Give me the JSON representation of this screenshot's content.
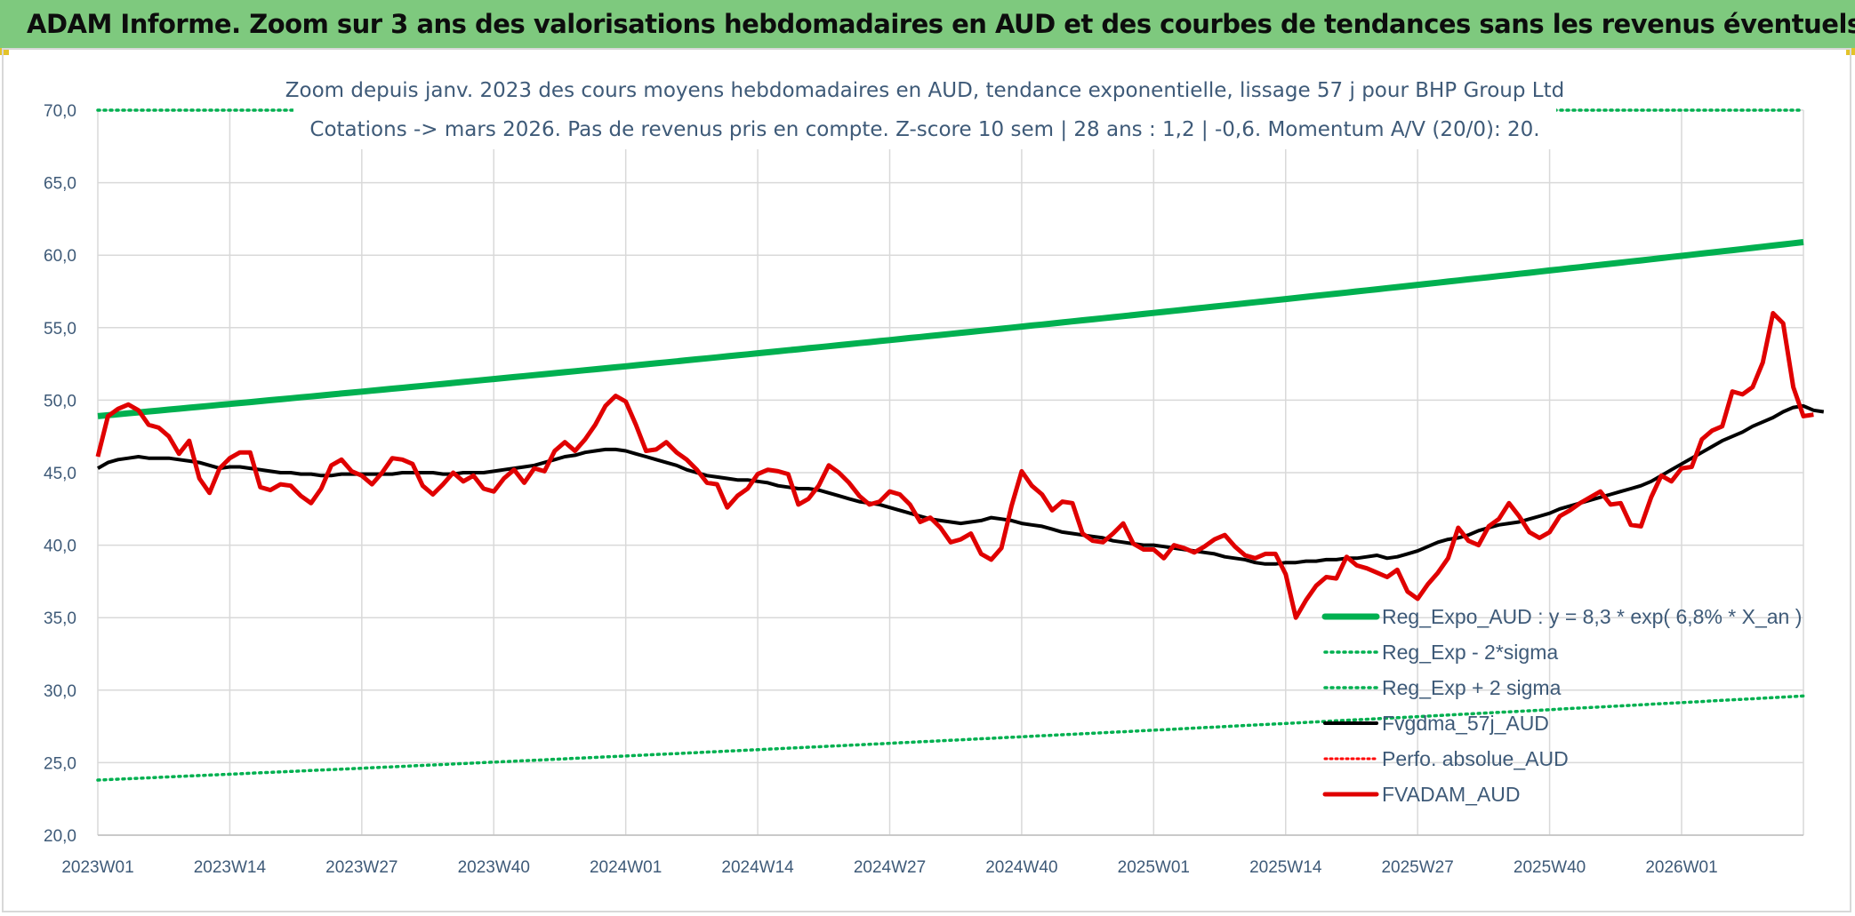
{
  "header": {
    "title": "ADAM Informe. Zoom sur 3 ans des valorisations hebdomadaires en AUD et des courbes de tendances sans les revenus éventuels"
  },
  "chart_data": {
    "type": "line",
    "title": "",
    "subtitle_lines": [
      "Zoom depuis janv. 2023 des cours moyens hebdomadaires en AUD, tendance exponentielle, lissage 57 j pour BHP Group Ltd",
      "Cotations -> mars 2026. Pas de revenus pris en compte. Z-score 10 sem | 28 ans : 1,2 | -0,6. Momentum A/V (20/0): 20."
    ],
    "xlabel": "",
    "ylabel": "",
    "ylim": [
      20,
      70
    ],
    "y_ticks": [
      "70,0",
      "65,0",
      "60,0",
      "55,0",
      "50,0",
      "45,0",
      "40,0",
      "35,0",
      "30,0",
      "25,0",
      "20,0"
    ],
    "x_ticks": [
      "2023W01",
      "2023W14",
      "2023W27",
      "2023W40",
      "2024W01",
      "2024W14",
      "2024W27",
      "2024W40",
      "2025W01",
      "2025W14",
      "2025W27",
      "2025W40",
      "2026W01"
    ],
    "weeks_total": 169,
    "x_tick_step": 13,
    "grid": true,
    "legend_position": "bottom-right",
    "colors": {
      "reg_expo": "#00b050",
      "band": "#00b050",
      "fvgdma": "#000000",
      "perfo": "#ff0000",
      "fvadam": "#e00000",
      "grid": "#d9d9d9"
    },
    "series": [
      {
        "name": "Reg_Expo_AUD : y = 8,3 * exp( 6,8% *  X_an )",
        "style": "thick-solid",
        "start": 48.9,
        "end": 60.9
      },
      {
        "name": "Reg_Exp - 2*sigma",
        "style": "dotted",
        "start": 23.8,
        "end": 29.6
      },
      {
        "name": "Reg_Exp + 2 sigma",
        "style": "dotted",
        "start": 70.0,
        "end": 70.0
      },
      {
        "name": "Fvgdma_57j_AUD",
        "style": "medium-solid",
        "values": [
          45.3,
          45.7,
          45.9,
          46.0,
          46.1,
          46.0,
          46.0,
          46.0,
          45.9,
          45.8,
          45.7,
          45.5,
          45.3,
          45.4,
          45.4,
          45.3,
          45.2,
          45.1,
          45.0,
          45.0,
          44.9,
          44.9,
          44.8,
          44.8,
          44.9,
          44.9,
          44.9,
          44.9,
          44.9,
          44.9,
          45.0,
          45.0,
          45.0,
          45.0,
          44.9,
          44.9,
          45.0,
          45.0,
          45.0,
          45.1,
          45.2,
          45.3,
          45.4,
          45.5,
          45.7,
          45.9,
          46.1,
          46.2,
          46.4,
          46.5,
          46.6,
          46.6,
          46.5,
          46.3,
          46.1,
          45.9,
          45.7,
          45.5,
          45.2,
          45.0,
          44.8,
          44.7,
          44.6,
          44.5,
          44.5,
          44.4,
          44.3,
          44.1,
          44.0,
          43.9,
          43.9,
          43.8,
          43.6,
          43.4,
          43.2,
          43.0,
          42.9,
          42.8,
          42.6,
          42.4,
          42.2,
          42.0,
          41.8,
          41.7,
          41.6,
          41.5,
          41.6,
          41.7,
          41.9,
          41.8,
          41.7,
          41.5,
          41.4,
          41.3,
          41.1,
          40.9,
          40.8,
          40.7,
          40.6,
          40.5,
          40.3,
          40.2,
          40.1,
          40.0,
          40.0,
          39.9,
          39.8,
          39.7,
          39.6,
          39.5,
          39.4,
          39.2,
          39.1,
          39.0,
          38.8,
          38.7,
          38.7,
          38.8,
          38.8,
          38.9,
          38.9,
          39.0,
          39.0,
          39.1,
          39.1,
          39.2,
          39.3,
          39.1,
          39.2,
          39.4,
          39.6,
          39.9,
          40.2,
          40.4,
          40.5,
          40.7,
          41.0,
          41.2,
          41.4,
          41.5,
          41.6,
          41.8,
          42.0,
          42.2,
          42.5,
          42.7,
          42.9,
          43.1,
          43.3,
          43.5,
          43.7,
          43.9,
          44.1,
          44.4,
          44.8,
          45.2,
          45.6,
          46.0,
          46.4,
          46.8,
          47.2,
          47.5,
          47.8,
          48.2,
          48.5,
          48.8,
          49.2,
          49.5,
          49.6,
          49.3,
          49.2
        ]
      },
      {
        "name": "Perfo. absolue_AUD",
        "style": "dotted-red",
        "values": []
      },
      {
        "name": "FVADAM_AUD",
        "style": "thick-solid-red",
        "values": [
          46.1,
          48.9,
          49.4,
          49.7,
          49.3,
          48.3,
          48.1,
          47.5,
          46.3,
          47.2,
          44.6,
          43.6,
          45.3,
          46.0,
          46.4,
          46.4,
          44.0,
          43.8,
          44.2,
          44.1,
          43.4,
          42.9,
          43.9,
          45.5,
          45.9,
          45.1,
          44.8,
          44.2,
          45.0,
          46.0,
          45.9,
          45.6,
          44.1,
          43.5,
          44.2,
          45.0,
          44.4,
          44.8,
          43.9,
          43.7,
          44.6,
          45.2,
          44.3,
          45.3,
          45.1,
          46.5,
          47.1,
          46.5,
          47.3,
          48.3,
          49.6,
          50.3,
          49.9,
          48.3,
          46.5,
          46.6,
          47.1,
          46.4,
          45.9,
          45.2,
          44.3,
          44.2,
          42.6,
          43.4,
          43.9,
          44.9,
          45.2,
          45.1,
          44.9,
          42.8,
          43.2,
          44.1,
          45.5,
          45.0,
          44.3,
          43.4,
          42.8,
          43.0,
          43.7,
          43.5,
          42.8,
          41.6,
          41.9,
          41.2,
          40.2,
          40.4,
          40.8,
          39.4,
          39.0,
          39.8,
          42.7,
          45.1,
          44.1,
          43.5,
          42.4,
          43.0,
          42.9,
          40.8,
          40.3,
          40.2,
          40.8,
          41.5,
          40.1,
          39.7,
          39.7,
          39.1,
          40.0,
          39.8,
          39.5,
          39.9,
          40.4,
          40.7,
          39.9,
          39.3,
          39.1,
          39.4,
          39.4,
          38.0,
          35.0,
          36.2,
          37.2,
          37.8,
          37.7,
          39.2,
          38.6,
          38.4,
          38.1,
          37.8,
          38.3,
          36.8,
          36.3,
          37.3,
          38.1,
          39.1,
          41.2,
          40.3,
          40.0,
          41.3,
          41.8,
          42.9,
          42.0,
          40.9,
          40.5,
          40.9,
          42.0,
          42.4,
          42.9,
          43.3,
          43.7,
          42.8,
          42.9,
          41.4,
          41.3,
          43.3,
          44.8,
          44.4,
          45.3,
          45.4,
          47.3,
          47.9,
          48.2,
          50.6,
          50.4,
          50.9,
          52.6,
          56.0,
          55.3,
          50.9,
          48.9,
          49.0
        ]
      }
    ]
  }
}
